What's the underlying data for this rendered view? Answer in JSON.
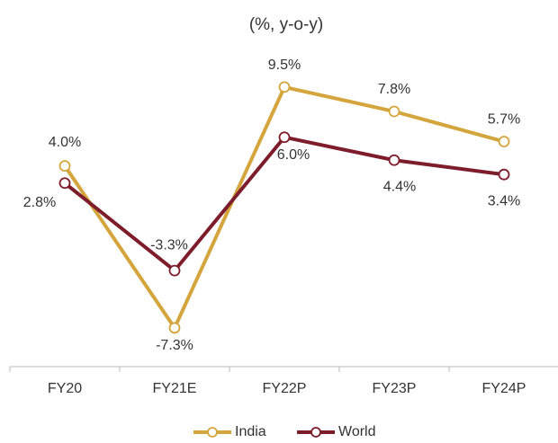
{
  "chart_data": {
    "type": "line",
    "title": "(%, y-o-y)",
    "categories": [
      "FY20",
      "FY21E",
      "FY22P",
      "FY23P",
      "FY24P"
    ],
    "series": [
      {
        "name": "India",
        "color": "#d4a53c",
        "values": [
          4.0,
          -7.3,
          9.5,
          7.8,
          5.7
        ],
        "value_labels": [
          "4.0%",
          "-7.3%",
          "9.5%",
          "7.8%",
          "5.7%"
        ]
      },
      {
        "name": "World",
        "color": "#7d1d2c",
        "values": [
          2.8,
          -3.3,
          6.0,
          4.4,
          3.4
        ],
        "value_labels": [
          "2.8%",
          "-3.3%",
          "6.0%",
          "4.4%",
          "3.4%"
        ]
      }
    ],
    "ylim": [
      -10,
      12
    ],
    "legend": "bottom"
  }
}
